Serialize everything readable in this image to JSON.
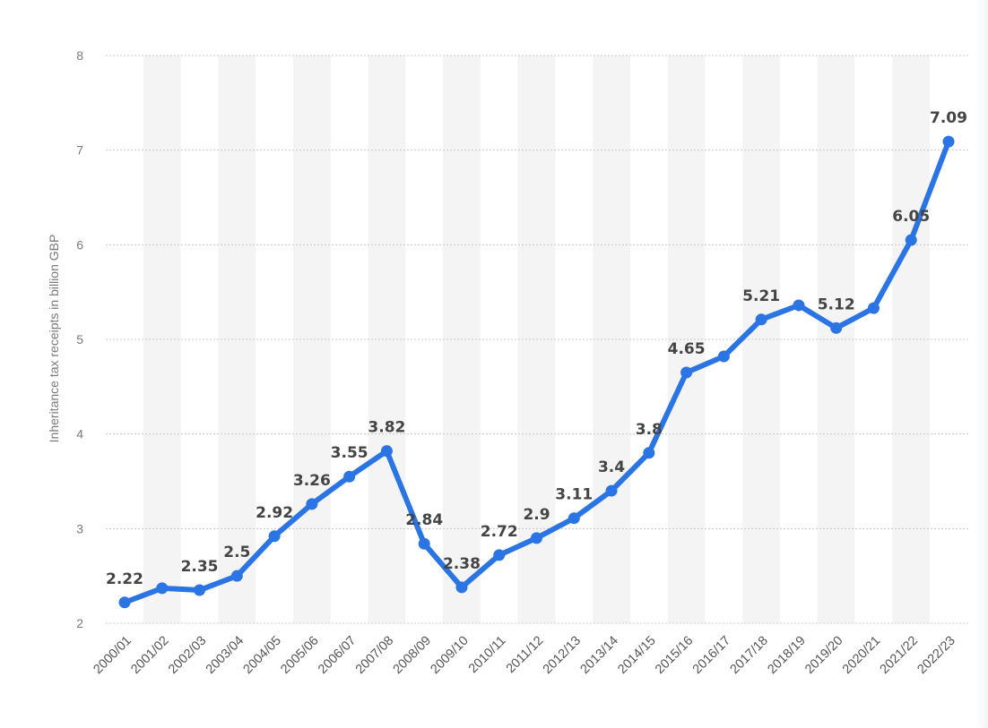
{
  "chart_data": {
    "type": "line",
    "title": "",
    "xlabel": "",
    "ylabel": "Inheritance tax receipts in billion GBP",
    "ylim": [
      2,
      8
    ],
    "yticks": [
      2,
      3,
      4,
      5,
      6,
      7,
      8
    ],
    "grid": "horizontal dotted",
    "legend": "none",
    "categories": [
      "2000/01",
      "2001/02",
      "2002/03",
      "2003/04",
      "2004/05",
      "2005/06",
      "2006/07",
      "2007/08",
      "2008/09",
      "2009/10",
      "2010/11",
      "2011/12",
      "2012/13",
      "2013/14",
      "2014/15",
      "2015/16",
      "2016/17",
      "2017/18",
      "2018/19",
      "2019/20",
      "2020/21",
      "2021/22",
      "2022/23"
    ],
    "values": [
      2.22,
      2.37,
      2.35,
      2.5,
      2.92,
      3.26,
      3.55,
      3.82,
      2.84,
      2.38,
      2.72,
      2.9,
      3.11,
      3.4,
      3.8,
      4.65,
      4.82,
      5.21,
      5.36,
      5.12,
      5.33,
      6.05,
      7.09
    ],
    "data_labels": [
      "2.22",
      "",
      "2.35",
      "2.5",
      "2.92",
      "3.26",
      "3.55",
      "3.82",
      "2.84",
      "2.38",
      "2.72",
      "2.9",
      "3.11",
      "3.4",
      "3.8",
      "4.65",
      "",
      "5.21",
      "",
      "5.12",
      "",
      "6.05",
      "7.09"
    ],
    "colors": {
      "line": "#2b74e4",
      "band": "#f4f4f4",
      "grid": "#c8c8c8"
    }
  }
}
